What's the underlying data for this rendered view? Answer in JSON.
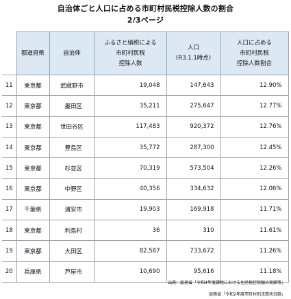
{
  "title": "自治体ごと人口に占める市町村民税控除人数の割合",
  "subtitle": "2/3ページ",
  "headers": {
    "prefecture": "都道府県",
    "municipality": "自治体",
    "deduction_line1": "ふるさと納税による",
    "deduction_line2": "市町村民税",
    "deduction_line3": "控除人数",
    "population_line1": "人口",
    "population_line2": "(R3.1.1時点)",
    "ratio_line1": "人口に占める",
    "ratio_line2": "市町村民税",
    "ratio_line3": "控除人数割合"
  },
  "rows": [
    {
      "rank": "11",
      "prefecture": "東京都",
      "municipality": "武蔵野市",
      "deduction": "19,048",
      "population": "147,643",
      "ratio": "12.90%"
    },
    {
      "rank": "12",
      "prefecture": "東京都",
      "municipality": "墨田区",
      "deduction": "35,211",
      "population": "275,647",
      "ratio": "12.77%"
    },
    {
      "rank": "13",
      "prefecture": "東京都",
      "municipality": "世田谷区",
      "deduction": "117,483",
      "population": "920,372",
      "ratio": "12.76%"
    },
    {
      "rank": "14",
      "prefecture": "東京都",
      "municipality": "豊島区",
      "deduction": "35,772",
      "population": "287,300",
      "ratio": "12.45%"
    },
    {
      "rank": "15",
      "prefecture": "東京都",
      "municipality": "杉並区",
      "deduction": "70,319",
      "population": "573,504",
      "ratio": "12.26%"
    },
    {
      "rank": "16",
      "prefecture": "東京都",
      "municipality": "中野区",
      "deduction": "40,356",
      "population": "334,632",
      "ratio": "12.06%"
    },
    {
      "rank": "17",
      "prefecture": "千葉県",
      "municipality": "浦安市",
      "deduction": "19,903",
      "population": "169,918",
      "ratio": "11.71%"
    },
    {
      "rank": "18",
      "prefecture": "東京都",
      "municipality": "利島村",
      "deduction": "36",
      "population": "310",
      "ratio": "11.61%"
    },
    {
      "rank": "19",
      "prefecture": "東京都",
      "municipality": "大田区",
      "deduction": "82,587",
      "population": "733,672",
      "ratio": "11.26%"
    },
    {
      "rank": "20",
      "prefecture": "兵庫県",
      "municipality": "芦屋市",
      "deduction": "10,690",
      "population": "95,616",
      "ratio": "11.18%"
    }
  ],
  "sources": {
    "line1": "出典：総務省「令和4年度課税における住民税控除額の実績等」",
    "line2": "総務省「令和2年度市町村別決算状況調」"
  }
}
